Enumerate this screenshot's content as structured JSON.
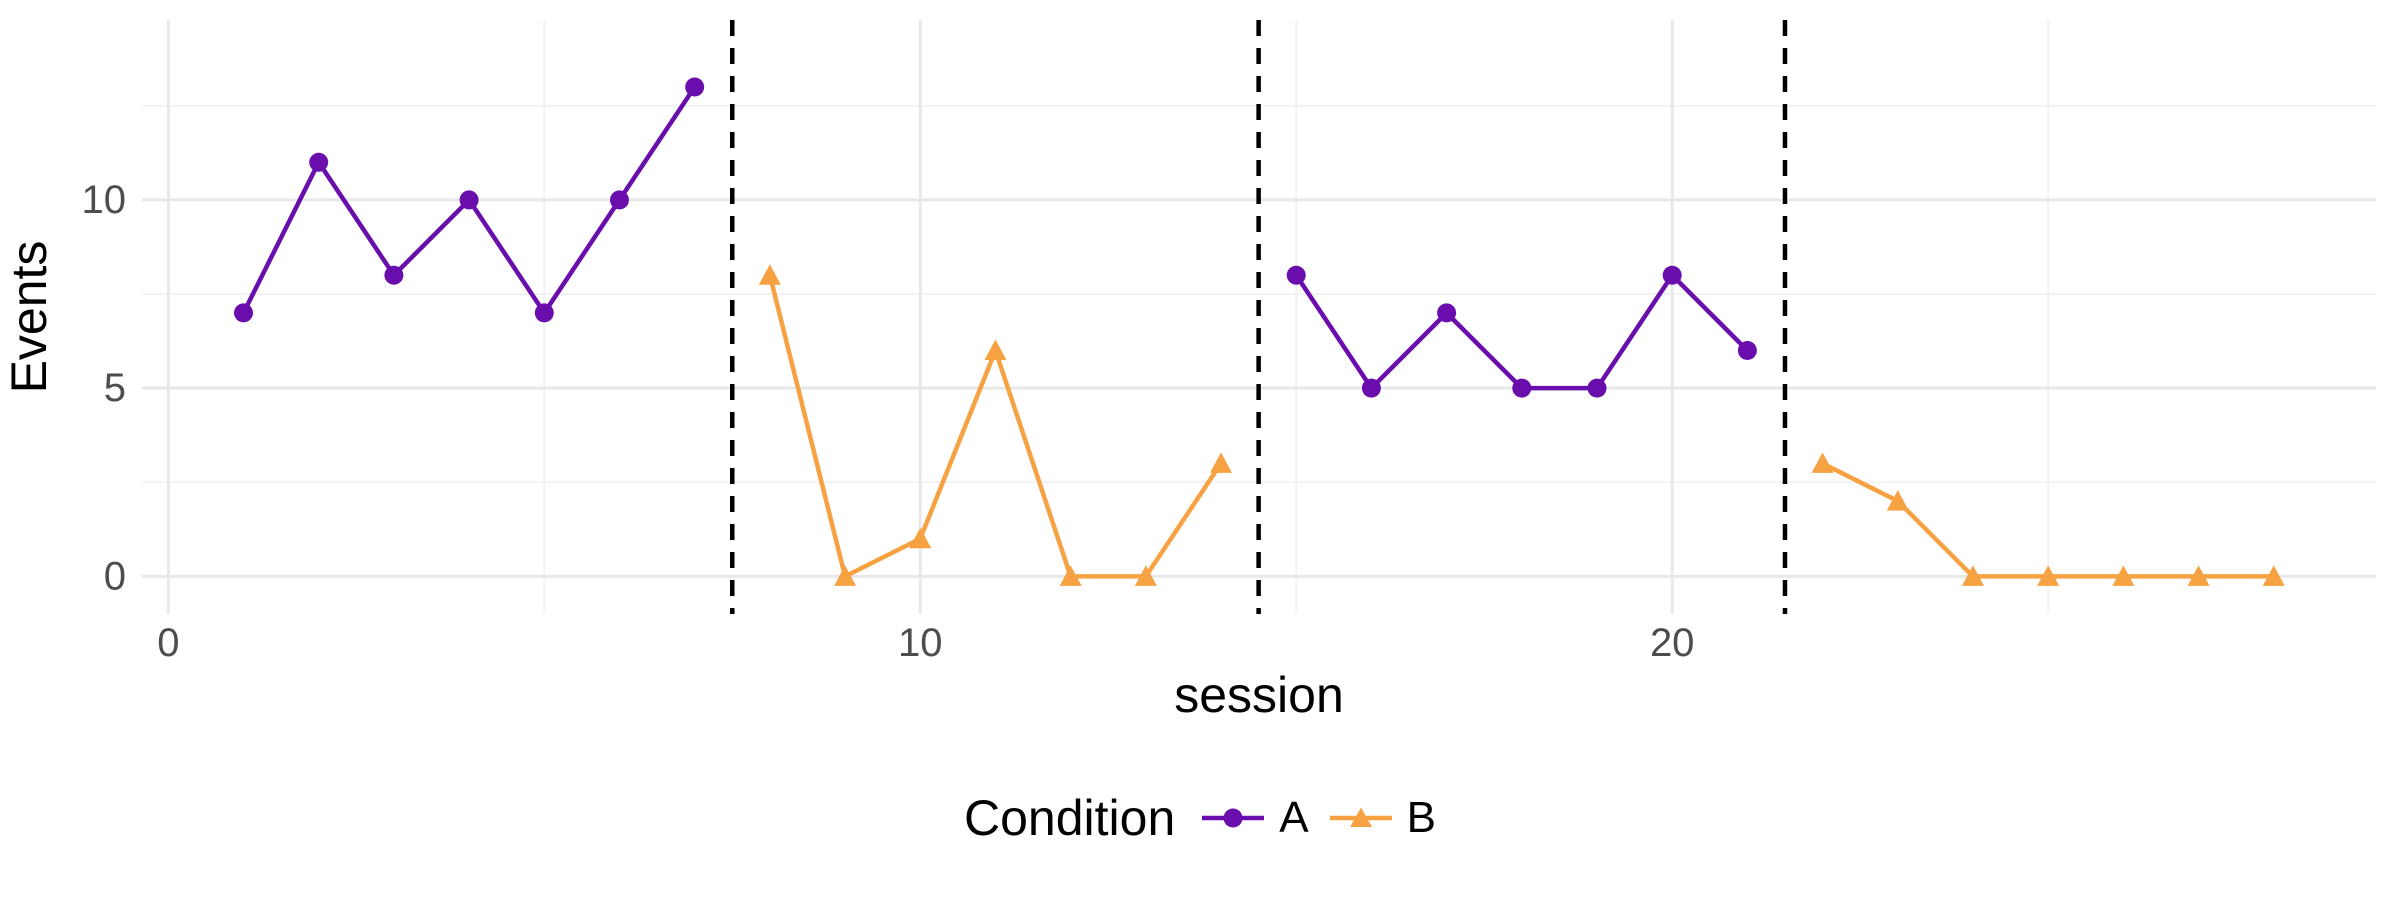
{
  "figure": {
    "background": "#FFFFFF"
  },
  "chart_data": {
    "type": "line",
    "title": "",
    "xlabel": "session",
    "ylabel": "Events",
    "xlim": [
      -0.35,
      29.36
    ],
    "ylim": [
      -1.0,
      14.78
    ],
    "x_major_ticks": [
      0,
      10,
      20
    ],
    "x_minor_gridlines": [
      5,
      15,
      25
    ],
    "y_major_ticks": [
      0,
      5,
      10
    ],
    "y_minor_gridlines": [
      2.5,
      7.5,
      12.5
    ],
    "phase_change_lines": [
      7.5,
      14.5,
      21.5
    ],
    "grid": true,
    "legend": {
      "title": "Condition",
      "position": "bottom"
    },
    "series": [
      {
        "name": "A",
        "color": "#6A0DAD",
        "marker": "circle",
        "segments": [
          {
            "x": [
              1,
              2,
              3,
              4,
              5,
              6,
              7
            ],
            "y": [
              7,
              11,
              8,
              10,
              7,
              10,
              13
            ]
          },
          {
            "x": [
              15,
              16,
              17,
              18,
              19,
              20,
              21
            ],
            "y": [
              8,
              5,
              7,
              5,
              5,
              8,
              6
            ]
          }
        ]
      },
      {
        "name": "B",
        "color": "#F6A242",
        "marker": "triangle",
        "segments": [
          {
            "x": [
              8,
              9,
              10,
              11,
              12,
              13,
              14
            ],
            "y": [
              8,
              0,
              1,
              6,
              0,
              0,
              3
            ]
          },
          {
            "x": [
              22,
              23,
              24,
              25,
              26,
              27,
              28
            ],
            "y": [
              3,
              2,
              0,
              0,
              0,
              0,
              0
            ]
          }
        ]
      }
    ],
    "styles": {
      "grid_major_color": "#E8E8E8",
      "grid_minor_color": "#F2F2F2",
      "tick_label_color": "#4D4D4D",
      "axis_title_color": "#000000",
      "phase_line_color": "#000000",
      "background": "#FFFFFF"
    }
  }
}
